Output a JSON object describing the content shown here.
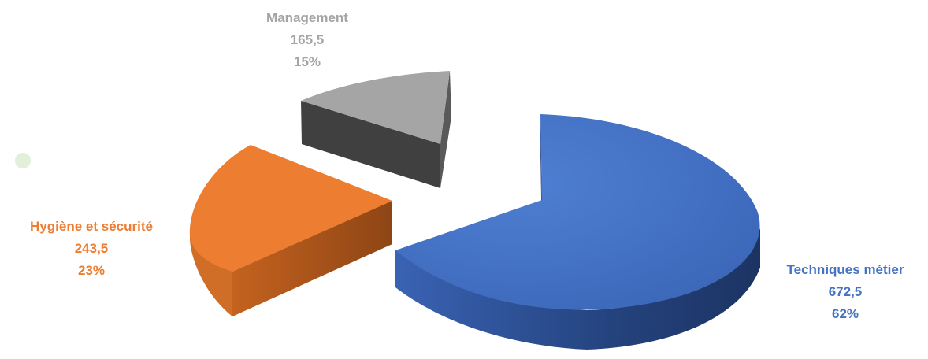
{
  "chart_data": {
    "type": "pie",
    "title": "",
    "three_d": true,
    "exploded": true,
    "slices": [
      {
        "label": "Techniques métier",
        "value": "672,5",
        "percent": "62%",
        "numeric_value": 672.5,
        "color": "#4472C4"
      },
      {
        "label": "Hygiène et sécurité",
        "value": "243,5",
        "percent": "23%",
        "numeric_value": 243.5,
        "color": "#ED7D31"
      },
      {
        "label": "Management",
        "value": "165,5",
        "percent": "15%",
        "numeric_value": 165.5,
        "color": "#A5A5A5"
      }
    ],
    "legend": "none"
  }
}
